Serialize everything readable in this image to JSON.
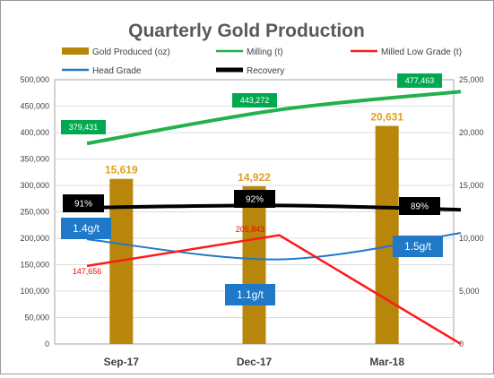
{
  "chart_data": {
    "type": "bar",
    "title": "Quarterly Gold Production",
    "categories": [
      "Sep-17",
      "Dec-17",
      "Mar-18"
    ],
    "left_axis": {
      "ylim": [
        0,
        500000
      ],
      "ticks": [
        "0",
        "50,000",
        "100,000",
        "150,000",
        "200,000",
        "250,000",
        "300,000",
        "350,000",
        "400,000",
        "450,000",
        "500,000"
      ]
    },
    "right_axis": {
      "ylim": [
        0,
        25000
      ],
      "ticks": [
        "0",
        "5,000",
        "10,000",
        "15,000",
        "20,000",
        "25,000"
      ]
    },
    "grid": true,
    "legend_position": "top",
    "series": [
      {
        "name": "Gold Produced (oz)",
        "type": "bar",
        "axis": "left",
        "color": "#b8860b",
        "values": [
          15619,
          14922,
          20631
        ],
        "labels": [
          "15,619",
          "14,922",
          "20,631"
        ],
        "label_color": "#e0a020"
      },
      {
        "name": "Milling (t)",
        "type": "line",
        "axis": "left",
        "color": "#22b14c",
        "values": [
          379431,
          443272,
          477463
        ],
        "labels": [
          "379,431",
          "443,272",
          "477,463"
        ],
        "label_bg": "#00a84f"
      },
      {
        "name": "Milled Low Grade (t)",
        "type": "line",
        "axis": "left",
        "color": "#ff1a1a",
        "values": [
          147656,
          205843,
          0
        ],
        "labels": [
          "147,656",
          "205,843",
          ""
        ],
        "label_color": "#ff0000"
      },
      {
        "name": "Head Grade",
        "type": "line",
        "axis": "left",
        "color": "#1f78c8",
        "values": [
          198000,
          160000,
          210000
        ],
        "labels": [
          "1.4g/t",
          "1.1g/t",
          "1.5g/t"
        ],
        "label_bg": "#1f78c8"
      },
      {
        "name": "Recovery",
        "type": "line",
        "axis": "left",
        "color": "#000000",
        "values": [
          258000,
          262000,
          254000
        ],
        "labels": [
          "91%",
          "92%",
          "89%"
        ],
        "label_bg": "#000000"
      }
    ]
  }
}
